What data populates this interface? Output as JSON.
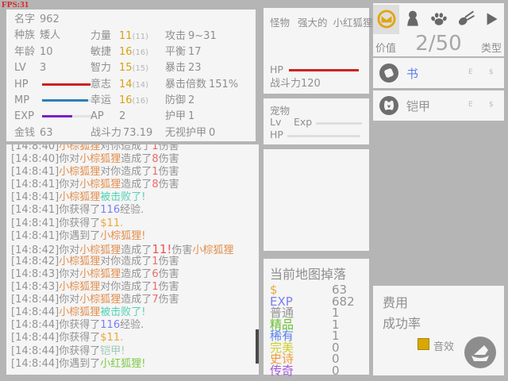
{
  "fps": "FPS:31",
  "colors": {
    "panel": "#f5f5f5",
    "bg": "#b5b5b5",
    "text": "#8f8f8f",
    "gold": "#d9a30f",
    "red_bar": "#cc2222",
    "blue_bar": "#2e7fb8",
    "purple_bar": "#7a1fc9",
    "fps_red": "#e02020",
    "ts": "#949494",
    "fox_brown": "#e28e4d",
    "dmg_red": "#f06868",
    "crit": "#f05555",
    "teal": "#52d2b4",
    "exp_blue": "#7d7df2",
    "money_gold": "#eaa83c",
    "armor_teal": "#9fc8b6",
    "green": "#7ec944",
    "drop_common": "#949494",
    "drop_fine": "#6abf30",
    "drop_rare": "#5b83ea",
    "drop_perfect": "#cdd02c",
    "drop_epic": "#f09a38",
    "drop_legend": "#a55ad8",
    "tab_gold": "#e2a413",
    "icon_gray": "#686868",
    "item_circle": "#6e6e6e",
    "item_blue": "#5b83ea",
    "checkbox_gold": "#d8a800"
  },
  "stats": {
    "bars": {
      "hp": {
        "color": "red_bar",
        "fill": 0.95
      },
      "mp": {
        "color": "blue_bar",
        "fill": 0.9
      },
      "exp": {
        "color": "purple_bar",
        "fill": 0.6
      }
    },
    "col1": [
      {
        "label": "名字",
        "value": "962"
      },
      {
        "label": "种族",
        "value": "矮人"
      },
      {
        "label": "年龄",
        "value": "10"
      },
      {
        "label": "LV",
        "value": "3"
      },
      {
        "label": "HP",
        "bar": "hp"
      },
      {
        "label": "MP",
        "bar": "mp"
      },
      {
        "label": "EXP",
        "bar": "exp"
      },
      {
        "label": "金钱",
        "value": "63"
      }
    ],
    "col2": [
      {
        "label": "力量",
        "value": "11",
        "base": "(11)",
        "gold": true
      },
      {
        "label": "敏捷",
        "value": "16",
        "base": "(16)",
        "gold": true
      },
      {
        "label": "智力",
        "value": "15",
        "base": "(15)",
        "gold": true
      },
      {
        "label": "意志",
        "value": "14",
        "base": "(14)",
        "gold": true
      },
      {
        "label": "幸运",
        "value": "16",
        "base": "(16)",
        "gold": true
      },
      {
        "label": "AP",
        "value": "2"
      },
      {
        "label": "战斗力",
        "value": "73.19"
      }
    ],
    "col3": [
      {
        "label": "攻击",
        "value": "9~31"
      },
      {
        "label": "平衡",
        "value": "17"
      },
      {
        "label": "暴击",
        "value": "23"
      },
      {
        "label": "暴击倍数",
        "value": "151%"
      },
      {
        "label": "防御",
        "value": "2"
      },
      {
        "label": "护甲",
        "value": "1"
      },
      {
        "label": "无视护甲",
        "value": "0"
      }
    ]
  },
  "monster": {
    "label": "怪物",
    "prefix": "强大的",
    "name": "小红狐狸",
    "hp_label": "HP",
    "hp_fill": 1,
    "power": "战斗力120"
  },
  "pet": {
    "title": "宠物",
    "lv_label": "Lv",
    "exp_label": "Exp",
    "hp_label": "HP"
  },
  "log": [
    [
      [
        "[14:8:40]",
        "ts"
      ],
      [
        "小棕狐狸",
        "fox_brown"
      ],
      [
        "对你造成了",
        "ts"
      ],
      [
        "1",
        "dmg_red"
      ],
      [
        "伤害",
        "ts"
      ]
    ],
    [
      [
        "[14:8:40]",
        "ts"
      ],
      [
        "你对",
        "ts"
      ],
      [
        "小棕狐狸",
        "fox_brown"
      ],
      [
        "造成了",
        "ts"
      ],
      [
        "8",
        "dmg_red"
      ],
      [
        "伤害",
        "ts"
      ]
    ],
    [
      [
        "[14:8:41]",
        "ts"
      ],
      [
        "小棕狐狸",
        "fox_brown"
      ],
      [
        "对你造成了",
        "ts"
      ],
      [
        "1",
        "dmg_red"
      ],
      [
        "伤害",
        "ts"
      ]
    ],
    [
      [
        "[14:8:41]",
        "ts"
      ],
      [
        "你对",
        "ts"
      ],
      [
        "小棕狐狸",
        "fox_brown"
      ],
      [
        "造成了",
        "ts"
      ],
      [
        "8",
        "dmg_red"
      ],
      [
        "伤害",
        "ts"
      ]
    ],
    [
      [
        "[14:8:41]",
        "ts"
      ],
      [
        "小棕狐狸",
        "fox_brown"
      ],
      [
        "被击败了!",
        "teal"
      ]
    ],
    [
      [
        "[14:8:41]",
        "ts"
      ],
      [
        "你获得了",
        "ts"
      ],
      [
        "116",
        "exp_blue"
      ],
      [
        "经验.",
        "ts"
      ]
    ],
    [
      [
        "[14:8:41]",
        "ts"
      ],
      [
        "你获得了",
        "ts"
      ],
      [
        "$11.",
        "money_gold"
      ]
    ],
    [
      [
        "[14:8:41]",
        "ts"
      ],
      [
        "你遇到了",
        "ts"
      ],
      [
        "小棕狐狸!",
        "fox_brown"
      ]
    ],
    [
      [
        "[14:8:42]",
        "ts"
      ],
      [
        "你对",
        "ts"
      ],
      [
        "小棕狐狸",
        "fox_brown"
      ],
      [
        "造成了",
        "ts"
      ],
      [
        "11!",
        "crit"
      ],
      [
        "伤害",
        "ts"
      ],
      [
        "小棕狐狸",
        "fox_brown"
      ]
    ],
    [
      [
        "[14:8:42]",
        "ts"
      ],
      [
        "小棕狐狸",
        "fox_brown"
      ],
      [
        "对你造成了",
        "ts"
      ],
      [
        "1",
        "dmg_red"
      ],
      [
        "伤害",
        "ts"
      ]
    ],
    [
      [
        "[14:8:43]",
        "ts"
      ],
      [
        "你对",
        "ts"
      ],
      [
        "小棕狐狸",
        "fox_brown"
      ],
      [
        "造成了",
        "ts"
      ],
      [
        "6",
        "dmg_red"
      ],
      [
        "伤害",
        "ts"
      ]
    ],
    [
      [
        "[14:8:43]",
        "ts"
      ],
      [
        "小棕狐狸",
        "fox_brown"
      ],
      [
        "对你造成了",
        "ts"
      ],
      [
        "1",
        "dmg_red"
      ],
      [
        "伤害",
        "ts"
      ]
    ],
    [
      [
        "[14:8:44]",
        "ts"
      ],
      [
        "你对",
        "ts"
      ],
      [
        "小棕狐狸",
        "fox_brown"
      ],
      [
        "造成了",
        "ts"
      ],
      [
        "7",
        "dmg_red"
      ],
      [
        "伤害",
        "ts"
      ]
    ],
    [
      [
        "[14:8:44]",
        "ts"
      ],
      [
        "小棕狐狸",
        "fox_brown"
      ],
      [
        "被击败了!",
        "teal"
      ]
    ],
    [
      [
        "[14:8:44]",
        "ts"
      ],
      [
        "你获得了",
        "ts"
      ],
      [
        "116",
        "exp_blue"
      ],
      [
        "经验.",
        "ts"
      ]
    ],
    [
      [
        "[14:8:44]",
        "ts"
      ],
      [
        "你获得了",
        "ts"
      ],
      [
        "$11.",
        "money_gold"
      ]
    ],
    [
      [
        "[14:8:44]",
        "ts"
      ],
      [
        "你获得了",
        "ts"
      ],
      [
        "铠甲!",
        "armor_teal"
      ]
    ],
    [
      [
        "[14:8:44]",
        "ts"
      ],
      [
        "你遇到了",
        "ts"
      ],
      [
        "小红狐狸!",
        "green"
      ]
    ]
  ],
  "drops": {
    "title": "当前地图掉落",
    "rows": [
      {
        "label": "$",
        "color": "money_gold",
        "value": "63"
      },
      {
        "label": "EXP",
        "color": "exp_blue",
        "value": "682"
      },
      {
        "label": "普通",
        "color": "drop_common",
        "value": "1"
      },
      {
        "label": "精品",
        "color": "drop_fine",
        "value": "1"
      },
      {
        "label": "稀有",
        "color": "drop_rare",
        "value": "1"
      },
      {
        "label": "完美",
        "color": "drop_perfect",
        "value": "0"
      },
      {
        "label": "史诗",
        "color": "drop_epic",
        "value": "0"
      },
      {
        "label": "传奇",
        "color": "drop_legend",
        "value": "0"
      }
    ]
  },
  "inventory": {
    "tabs": [
      {
        "icon": "inventory-bag-icon",
        "selected": true
      },
      {
        "icon": "character-icon",
        "selected": false
      },
      {
        "icon": "pet-paw-icon",
        "selected": false
      },
      {
        "icon": "skill-comet-icon",
        "selected": false
      },
      {
        "icon": "play-icon",
        "selected": false
      }
    ],
    "value_label": "价值",
    "count": "2/50",
    "type_label": "类型",
    "items": [
      {
        "icon": "book-icon",
        "name": "书",
        "name_color": "item_blue",
        "equip_label": "E",
        "sell_label": "$"
      },
      {
        "icon": "armor-icon",
        "name": "铠甲",
        "name_color": "drop_common",
        "equip_label": "E",
        "sell_label": "$"
      }
    ]
  },
  "forge": {
    "cost_label": "费用",
    "success_label": "成功率",
    "sound_label": "音效"
  }
}
